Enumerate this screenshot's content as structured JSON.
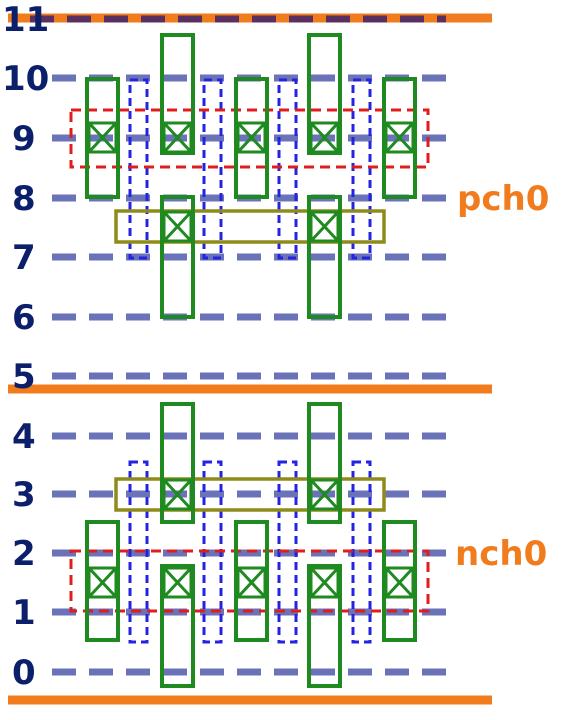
{
  "row_labels": [
    "0",
    "1",
    "2",
    "3",
    "4",
    "5",
    "6",
    "7",
    "8",
    "9",
    "10",
    "11"
  ],
  "device_labels": {
    "pmos": "pch0",
    "nmos": "nch0"
  },
  "colors": {
    "row_label": "#0c1f6b",
    "track_dash": "#6a72b8",
    "power_rail": "#f07c1e",
    "poly_gate": "#1f8a1f",
    "diffusion_outline": "#2323e0",
    "device_outline": "#e01c1c",
    "route_outline": "#8f8b1a",
    "top_dark_dash": "#5a3060"
  }
}
